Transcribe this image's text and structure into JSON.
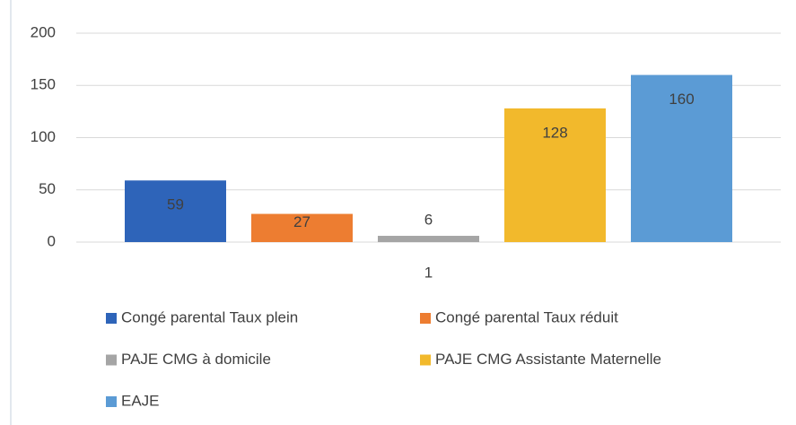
{
  "chart_data": {
    "type": "bar",
    "categories": [
      "1"
    ],
    "series": [
      {
        "name": "Congé parental Taux plein",
        "color": "#2e64b9",
        "values": [
          59
        ]
      },
      {
        "name": "Congé parental Taux réduit",
        "color": "#ed7d31",
        "values": [
          27
        ]
      },
      {
        "name": "PAJE CMG à domicile",
        "color": "#a5a5a5",
        "values": [
          6
        ]
      },
      {
        "name": "PAJE CMG Assistante Maternelle",
        "color": "#f2b92c",
        "values": [
          128
        ]
      },
      {
        "name": "EAJE",
        "color": "#5b9bd5",
        "values": [
          160
        ]
      }
    ],
    "ylim": [
      0,
      200
    ],
    "yticks": [
      0,
      50,
      100,
      150,
      200
    ],
    "grid": true,
    "data_labels": true,
    "legend": "bottom"
  }
}
